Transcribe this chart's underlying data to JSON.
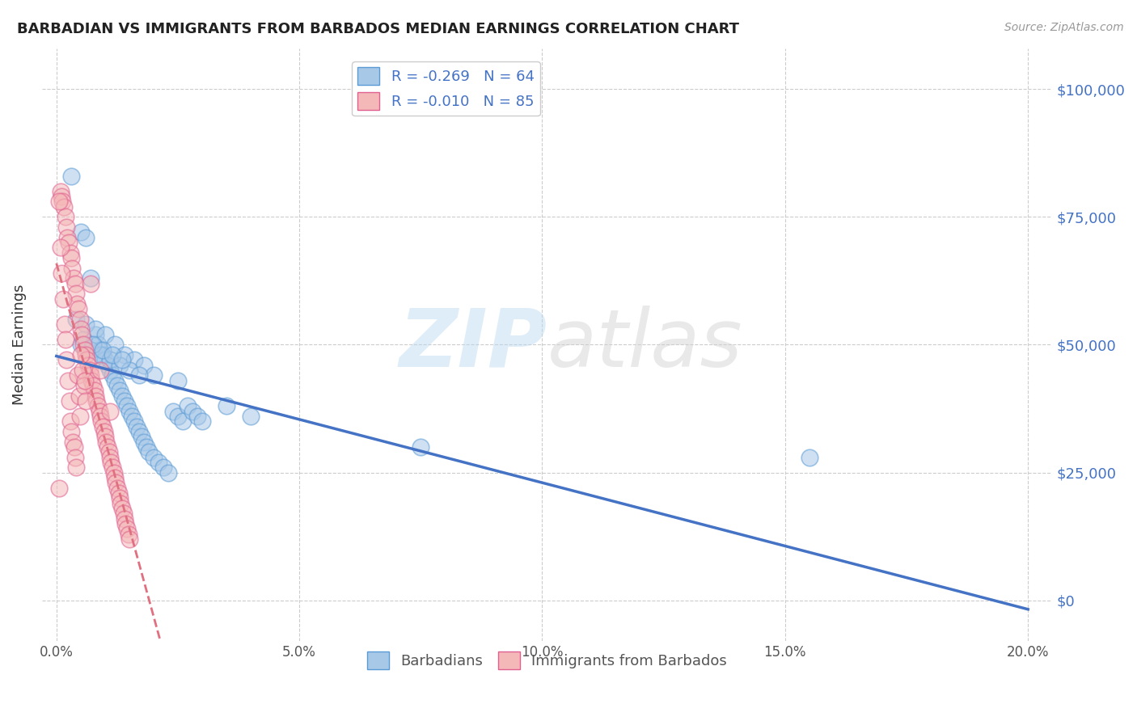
{
  "title": "BARBADIAN VS IMMIGRANTS FROM BARBADOS MEDIAN EARNINGS CORRELATION CHART",
  "source": "Source: ZipAtlas.com",
  "ylabel": "Median Earnings",
  "xlabel_ticks": [
    "0.0%",
    "5.0%",
    "10.0%",
    "15.0%",
    "20.0%"
  ],
  "xlabel_values": [
    0.0,
    5.0,
    10.0,
    15.0,
    20.0
  ],
  "ylabel_ticks": [
    "$0",
    "$25,000",
    "$50,000",
    "$75,000",
    "$100,000"
  ],
  "ylabel_values": [
    0,
    25000,
    50000,
    75000,
    100000
  ],
  "xlim": [
    -0.3,
    20.5
  ],
  "ylim": [
    -8000,
    108000
  ],
  "blue_face": "#a8c8e8",
  "pink_face": "#f4b8b8",
  "blue_edge": "#5b9bd5",
  "pink_edge": "#e06090",
  "blue_line_color": "#4472c4",
  "pink_line_color": "#e07080",
  "legend_blue_label": "R = -0.269   N = 64",
  "legend_pink_label": "R = -0.010   N = 85",
  "barbadians_label": "Barbadians",
  "immigrants_label": "Immigrants from Barbados",
  "watermark_zip": "ZIP",
  "watermark_atlas": "atlas",
  "blue_scatter_x": [
    0.3,
    0.5,
    0.6,
    0.7,
    0.8,
    0.85,
    0.9,
    0.95,
    1.0,
    1.05,
    1.1,
    1.15,
    1.2,
    1.25,
    1.3,
    1.35,
    1.4,
    1.45,
    1.5,
    1.55,
    1.6,
    1.65,
    1.7,
    1.75,
    1.8,
    1.85,
    1.9,
    2.0,
    2.1,
    2.2,
    2.3,
    2.4,
    2.5,
    2.6,
    2.7,
    2.8,
    2.9,
    3.0,
    3.5,
    4.0,
    0.4,
    0.6,
    0.8,
    1.0,
    1.2,
    1.4,
    1.6,
    1.8,
    2.0,
    0.5,
    0.7,
    0.9,
    1.1,
    1.3,
    1.5,
    1.7,
    7.5,
    15.5,
    0.55,
    0.75,
    0.95,
    1.15,
    1.35,
    2.5
  ],
  "blue_scatter_y": [
    83000,
    72000,
    71000,
    63000,
    52000,
    50000,
    49000,
    48000,
    47000,
    46000,
    45000,
    44000,
    43000,
    42000,
    41000,
    40000,
    39000,
    38000,
    37000,
    36000,
    35000,
    34000,
    33000,
    32000,
    31000,
    30000,
    29000,
    28000,
    27000,
    26000,
    25000,
    37000,
    36000,
    35000,
    38000,
    37000,
    36000,
    35000,
    38000,
    36000,
    55000,
    54000,
    53000,
    52000,
    50000,
    48000,
    47000,
    46000,
    44000,
    50000,
    49000,
    48000,
    47000,
    46000,
    45000,
    44000,
    30000,
    28000,
    51000,
    50000,
    49000,
    48000,
    47000,
    43000
  ],
  "pink_scatter_x": [
    0.05,
    0.08,
    0.1,
    0.12,
    0.15,
    0.18,
    0.2,
    0.22,
    0.25,
    0.28,
    0.3,
    0.32,
    0.35,
    0.38,
    0.4,
    0.42,
    0.45,
    0.48,
    0.5,
    0.52,
    0.55,
    0.58,
    0.6,
    0.62,
    0.65,
    0.68,
    0.7,
    0.72,
    0.75,
    0.78,
    0.8,
    0.82,
    0.85,
    0.88,
    0.9,
    0.92,
    0.95,
    0.98,
    1.0,
    1.02,
    1.05,
    1.08,
    1.1,
    1.12,
    1.15,
    1.18,
    1.2,
    1.22,
    1.25,
    1.28,
    1.3,
    1.32,
    1.35,
    1.38,
    1.4,
    1.42,
    1.45,
    1.48,
    1.5,
    0.06,
    0.09,
    0.11,
    0.14,
    0.17,
    0.19,
    0.21,
    0.24,
    0.27,
    0.29,
    0.31,
    0.34,
    0.37,
    0.39,
    0.41,
    0.44,
    0.47,
    0.49,
    0.51,
    0.54,
    0.57,
    0.59,
    0.61,
    0.7,
    0.9,
    1.1
  ],
  "pink_scatter_y": [
    22000,
    80000,
    79000,
    78000,
    77000,
    75000,
    73000,
    71000,
    70000,
    68000,
    67000,
    65000,
    63000,
    62000,
    60000,
    58000,
    57000,
    55000,
    53000,
    52000,
    50000,
    49000,
    48000,
    47000,
    46000,
    45000,
    44000,
    43000,
    42000,
    41000,
    40000,
    39000,
    38000,
    37000,
    36000,
    35000,
    34000,
    33000,
    32000,
    31000,
    30000,
    29000,
    28000,
    27000,
    26000,
    25000,
    24000,
    23000,
    22000,
    21000,
    20000,
    19000,
    18000,
    17000,
    16000,
    15000,
    14000,
    13000,
    12000,
    78000,
    69000,
    64000,
    59000,
    54000,
    51000,
    47000,
    43000,
    39000,
    35000,
    33000,
    31000,
    30000,
    28000,
    26000,
    44000,
    40000,
    36000,
    48000,
    45000,
    42000,
    43000,
    39000,
    62000,
    45000,
    37000
  ]
}
